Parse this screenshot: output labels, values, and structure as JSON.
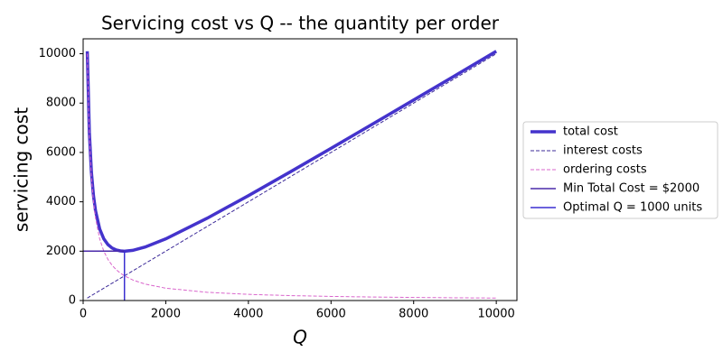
{
  "chart_data": {
    "type": "line",
    "title": "Servicing cost vs Q -- the quantity per order",
    "xlabel": "Q",
    "ylabel": "servicing cost",
    "xlim": [
      0,
      10500
    ],
    "ylim": [
      0,
      10605
    ],
    "xticks": [
      0,
      2000,
      4000,
      6000,
      8000,
      10000
    ],
    "yticks": [
      0,
      2000,
      4000,
      6000,
      8000,
      10000
    ],
    "legend": "outside right",
    "series": [
      {
        "name": "total cost",
        "color": "#4433cc",
        "width": 3.5,
        "dashed": false,
        "x": [
          100,
          150,
          200,
          250,
          300,
          400,
          500,
          600,
          700,
          800,
          900,
          1000,
          1200,
          1500,
          2000,
          3000,
          4000,
          5000,
          6000,
          7000,
          8000,
          9000,
          10000
        ],
        "values": [
          10100,
          6816.67,
          5200,
          4250,
          3633.33,
          2900,
          2500,
          2266.67,
          2128.57,
          2050,
          2011.11,
          2000,
          2033.33,
          2166.67,
          2500,
          3333.33,
          4250,
          5200,
          6166.67,
          7142.86,
          8125,
          9111.11,
          10100
        ]
      },
      {
        "name": "interest costs",
        "color": "#3d2b99",
        "width": 1,
        "dashed": true,
        "x": [
          100,
          10000
        ],
        "values": [
          100,
          10000
        ]
      },
      {
        "name": "ordering costs",
        "color": "#d966cc",
        "width": 1,
        "dashed": true,
        "x": [
          100,
          150,
          200,
          250,
          300,
          400,
          500,
          600,
          700,
          800,
          900,
          1000,
          1200,
          1500,
          2000,
          3000,
          4000,
          5000,
          6000,
          7000,
          8000,
          9000,
          10000
        ],
        "values": [
          10000,
          6666.67,
          5000,
          4000,
          3333.33,
          2500,
          2000,
          1666.67,
          1428.57,
          1250,
          1111.11,
          1000,
          833.33,
          666.67,
          500,
          333.33,
          250,
          200,
          166.67,
          142.86,
          125,
          111.11,
          100
        ]
      },
      {
        "name": "Min Total Cost = $2000",
        "color": "#4a2aaa",
        "width": 1.5,
        "dashed": false,
        "x": [
          0,
          1000
        ],
        "values": [
          2000,
          2000
        ]
      },
      {
        "name": "Optimal Q = 1000 units",
        "color": "#3a2fd0",
        "width": 1.5,
        "dashed": false,
        "x": [
          1000,
          1000
        ],
        "values": [
          0,
          2000
        ]
      }
    ]
  }
}
